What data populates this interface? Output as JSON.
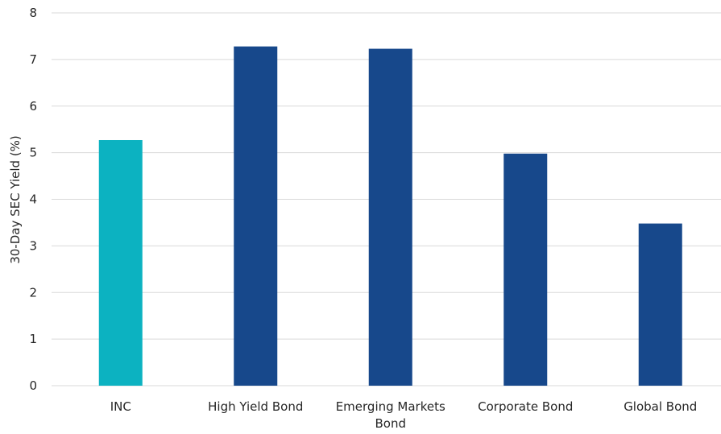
{
  "chart_data": {
    "type": "bar",
    "title": "",
    "xlabel": "",
    "ylabel": "30-Day SEC Yield (%)",
    "ylim": [
      0,
      8
    ],
    "yticks": [
      0,
      1,
      2,
      3,
      4,
      5,
      6,
      7,
      8
    ],
    "grid": true,
    "categories": [
      "INC",
      "High Yield Bond",
      "Emerging Markets Bond",
      "Corporate Bond",
      "Global Bond"
    ],
    "category_label_lines": [
      [
        "INC"
      ],
      [
        "High Yield Bond"
      ],
      [
        "Emerging Markets",
        "Bond"
      ],
      [
        "Corporate Bond"
      ],
      [
        "Global Bond"
      ]
    ],
    "values": [
      5.27,
      7.28,
      7.23,
      4.98,
      3.48
    ],
    "colors": [
      "#0cb2c1",
      "#17488b",
      "#17488b",
      "#17488b",
      "#17488b"
    ]
  }
}
